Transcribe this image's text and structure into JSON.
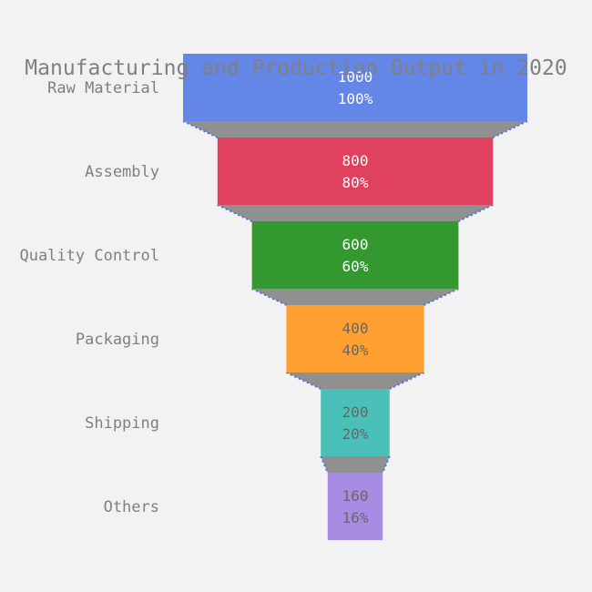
{
  "chart_data": {
    "type": "funnel",
    "title": "Manufacturing and Production Output in 2020",
    "categories": [
      "Raw Material",
      "Assembly",
      "Quality Control",
      "Packaging",
      "Shipping",
      "Others"
    ],
    "values": [
      1000,
      800,
      600,
      400,
      200,
      160
    ],
    "percent_labels": [
      "100%",
      "80%",
      "60%",
      "40%",
      "20%",
      "16%"
    ],
    "colors": [
      "#6486e7",
      "#e0415f",
      "#33982f",
      "#ffa031",
      "#4bc0b9",
      "#a88be3"
    ],
    "text_colors": [
      "#ffffff",
      "#ffffff",
      "#ffffff",
      "#666666",
      "#666666",
      "#666666"
    ],
    "connector_color": "#909090",
    "connector_border_color": "#4a6fe3",
    "background": "#f2f2f2"
  }
}
